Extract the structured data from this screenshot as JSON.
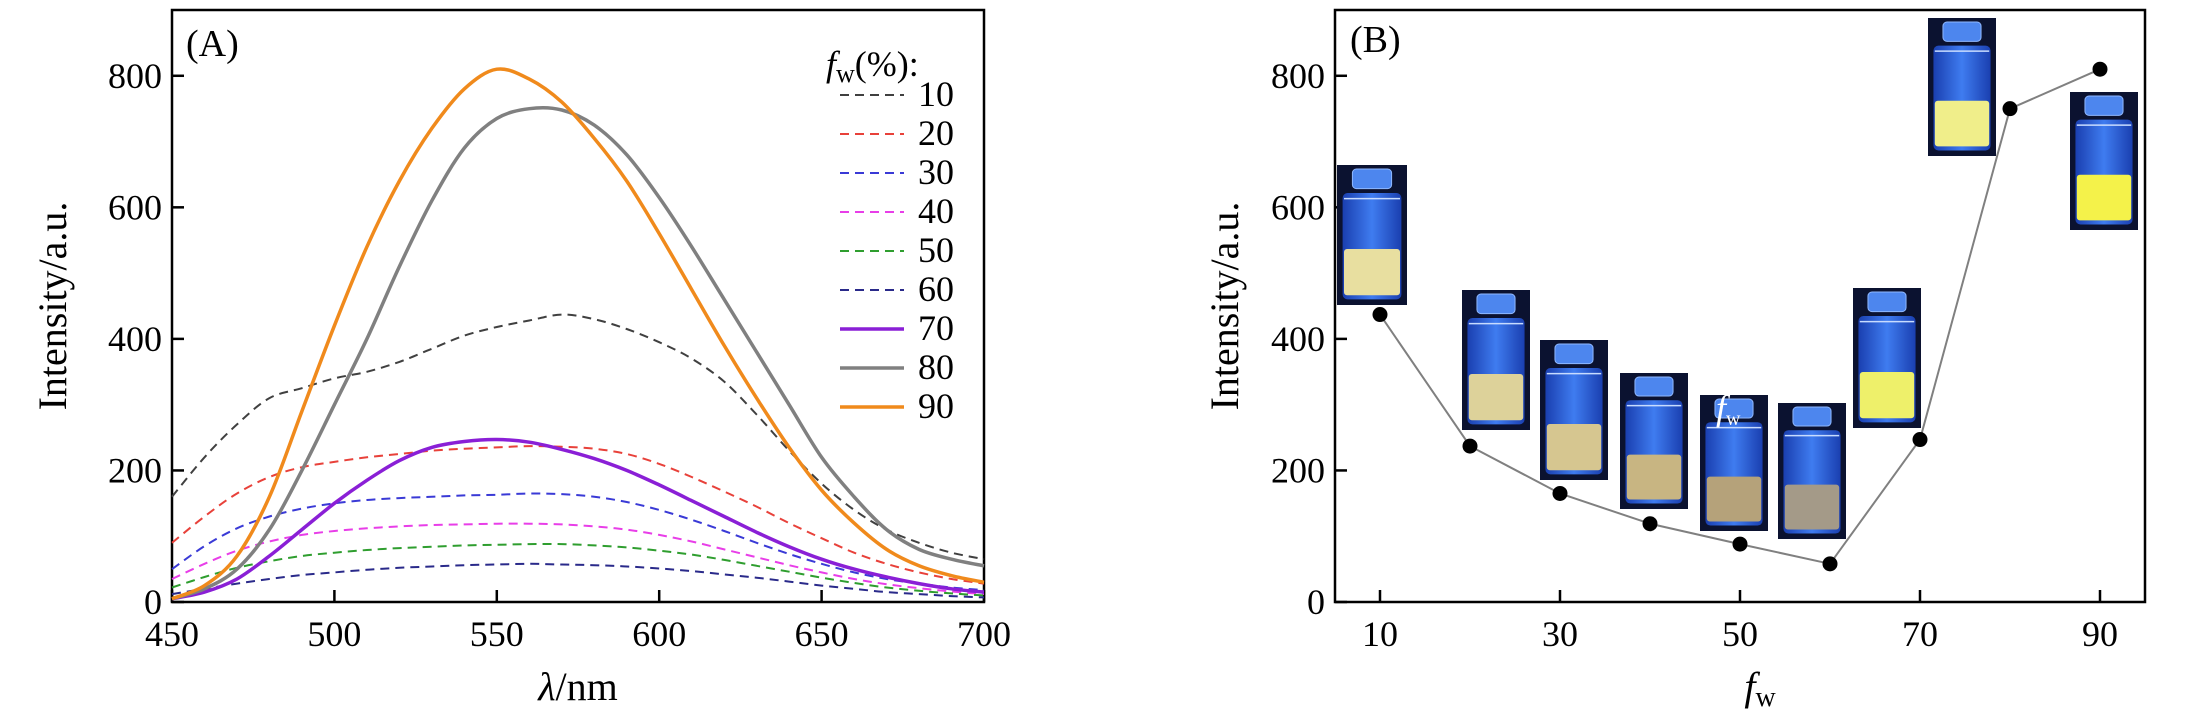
{
  "chart_data": [
    {
      "type": "line",
      "panel_label": "(A)",
      "xlabel_italic": "λ",
      "xlabel_unit": "/nm",
      "ylabel": "Intensity/a.u.",
      "xlim": [
        450,
        700
      ],
      "ylim": [
        0,
        900
      ],
      "xticks": [
        450,
        500,
        550,
        600,
        650,
        700
      ],
      "yticks": [
        0,
        200,
        400,
        600,
        800
      ],
      "legend_title_italic": "f",
      "legend_title_sub": "w",
      "legend_title_rest": "(%):",
      "legend_position": "top-right",
      "series": [
        {
          "name": "10",
          "color": "#404040",
          "style": "dashed",
          "x": [
            450,
            460,
            470,
            480,
            490,
            500,
            510,
            520,
            530,
            540,
            550,
            560,
            570,
            580,
            590,
            600,
            610,
            620,
            630,
            640,
            650,
            660,
            670,
            680,
            690,
            700
          ],
          "values": [
            160,
            220,
            270,
            310,
            325,
            340,
            350,
            365,
            385,
            405,
            418,
            428,
            437,
            430,
            415,
            395,
            370,
            335,
            285,
            230,
            180,
            140,
            110,
            90,
            75,
            65
          ]
        },
        {
          "name": "20",
          "color": "#e8413a",
          "style": "dashed",
          "x": [
            450,
            460,
            470,
            480,
            490,
            500,
            510,
            520,
            530,
            540,
            550,
            560,
            570,
            580,
            590,
            600,
            610,
            620,
            630,
            640,
            650,
            660,
            670,
            680,
            690,
            700
          ],
          "values": [
            90,
            130,
            165,
            190,
            205,
            213,
            220,
            225,
            230,
            233,
            235,
            237,
            236,
            233,
            225,
            210,
            190,
            168,
            145,
            120,
            97,
            75,
            58,
            45,
            35,
            28
          ]
        },
        {
          "name": "30",
          "color": "#3a3ad6",
          "style": "dashed",
          "x": [
            450,
            460,
            470,
            480,
            490,
            500,
            510,
            520,
            530,
            540,
            550,
            560,
            570,
            580,
            590,
            600,
            610,
            620,
            630,
            640,
            650,
            660,
            670,
            680,
            690,
            700
          ],
          "values": [
            50,
            85,
            112,
            130,
            142,
            150,
            155,
            158,
            160,
            162,
            163,
            165,
            164,
            160,
            152,
            140,
            125,
            108,
            90,
            73,
            58,
            45,
            35,
            28,
            22,
            18
          ]
        },
        {
          "name": "40",
          "color": "#e83ee8",
          "style": "dashed",
          "x": [
            450,
            460,
            470,
            480,
            490,
            500,
            510,
            520,
            530,
            540,
            550,
            560,
            570,
            580,
            590,
            600,
            610,
            620,
            630,
            640,
            650,
            660,
            670,
            680,
            690,
            700
          ],
          "values": [
            35,
            58,
            78,
            92,
            102,
            108,
            112,
            115,
            117,
            118,
            119,
            119,
            118,
            115,
            110,
            102,
            92,
            80,
            68,
            56,
            45,
            35,
            27,
            21,
            16,
            12
          ]
        },
        {
          "name": "50",
          "color": "#2f9e2f",
          "style": "dashed",
          "x": [
            450,
            460,
            470,
            480,
            490,
            500,
            510,
            520,
            530,
            540,
            550,
            560,
            570,
            580,
            590,
            600,
            610,
            620,
            630,
            640,
            650,
            660,
            670,
            680,
            690,
            700
          ],
          "values": [
            22,
            38,
            52,
            62,
            70,
            75,
            79,
            82,
            84,
            86,
            87,
            88,
            88,
            86,
            83,
            78,
            72,
            64,
            55,
            46,
            37,
            29,
            22,
            17,
            13,
            10
          ]
        },
        {
          "name": "60",
          "color": "#2a2a8a",
          "style": "dashed",
          "x": [
            450,
            460,
            470,
            480,
            490,
            500,
            510,
            520,
            530,
            540,
            550,
            560,
            570,
            580,
            590,
            600,
            610,
            620,
            630,
            640,
            650,
            660,
            670,
            680,
            690,
            700
          ],
          "values": [
            12,
            20,
            28,
            35,
            41,
            45,
            49,
            52,
            54,
            56,
            57,
            58,
            57,
            56,
            54,
            51,
            47,
            42,
            37,
            31,
            25,
            20,
            15,
            12,
            9,
            7
          ]
        },
        {
          "name": "70",
          "color": "#8a1fd6",
          "style": "solid",
          "x": [
            450,
            460,
            470,
            480,
            490,
            500,
            510,
            520,
            530,
            540,
            550,
            560,
            570,
            580,
            590,
            600,
            610,
            620,
            630,
            640,
            650,
            660,
            670,
            680,
            690,
            700
          ],
          "values": [
            5,
            15,
            35,
            70,
            110,
            150,
            185,
            215,
            235,
            244,
            247,
            243,
            232,
            218,
            200,
            178,
            154,
            130,
            106,
            84,
            65,
            50,
            38,
            28,
            20,
            15
          ]
        },
        {
          "name": "80",
          "color": "#808080",
          "style": "solid",
          "x": [
            450,
            460,
            470,
            480,
            490,
            500,
            510,
            520,
            530,
            540,
            550,
            560,
            570,
            580,
            590,
            600,
            610,
            620,
            630,
            640,
            650,
            660,
            670,
            680,
            690,
            700
          ],
          "values": [
            5,
            20,
            50,
            110,
            200,
            300,
            400,
            510,
            610,
            690,
            735,
            750,
            748,
            725,
            680,
            615,
            540,
            460,
            380,
            300,
            220,
            160,
            110,
            80,
            65,
            55
          ]
        },
        {
          "name": "90",
          "color": "#f08a1c",
          "style": "solid",
          "x": [
            450,
            460,
            470,
            480,
            490,
            500,
            510,
            520,
            530,
            540,
            550,
            560,
            570,
            580,
            590,
            600,
            610,
            620,
            630,
            640,
            650,
            660,
            670,
            680,
            690,
            700
          ],
          "values": [
            5,
            25,
            70,
            160,
            290,
            420,
            540,
            640,
            720,
            780,
            810,
            795,
            760,
            705,
            640,
            560,
            475,
            390,
            310,
            235,
            170,
            120,
            80,
            55,
            40,
            30
          ]
        }
      ]
    },
    {
      "type": "scatter",
      "panel_label": "(B)",
      "xlabel_italic": "f",
      "xlabel_sub": "w",
      "ylabel": "Intensity/a.u.",
      "xlim": [
        5,
        95
      ],
      "ylim": [
        0,
        900
      ],
      "xticks": [
        10,
        30,
        50,
        70,
        90
      ],
      "yticks": [
        0,
        200,
        400,
        600,
        800
      ],
      "connected": true,
      "marker_color": "#000000",
      "line_color": "#808080",
      "x": [
        10,
        20,
        30,
        40,
        50,
        60,
        70,
        80,
        90
      ],
      "values": [
        437,
        237,
        165,
        119,
        88,
        58,
        247,
        750,
        810
      ],
      "inset_annotation": {
        "italic": "f",
        "sub": "w"
      },
      "inset_images": [
        {
          "fw": 10,
          "liquid": "#e8dfa0"
        },
        {
          "fw": 20,
          "liquid": "#ddd29a"
        },
        {
          "fw": 30,
          "liquid": "#d6c690"
        },
        {
          "fw": 40,
          "liquid": "#c8b582"
        },
        {
          "fw": 50,
          "liquid": "#b5a27a"
        },
        {
          "fw": 60,
          "liquid": "#a49a88"
        },
        {
          "fw": 70,
          "liquid": "#eef06a"
        },
        {
          "fw": 80,
          "liquid": "#f0ee8a"
        },
        {
          "fw": 90,
          "liquid": "#f4f24a"
        }
      ]
    }
  ]
}
